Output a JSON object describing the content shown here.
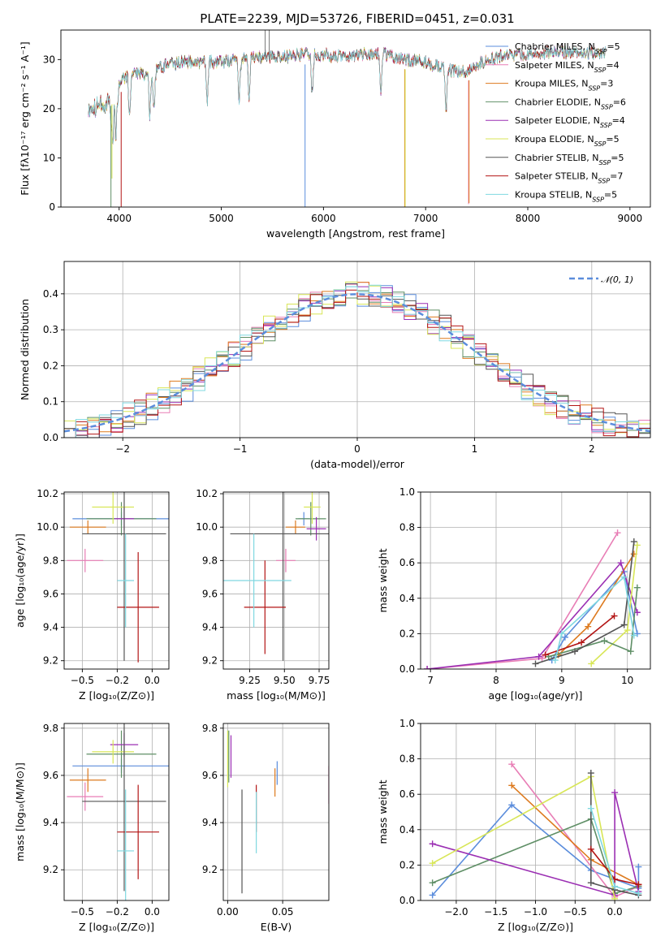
{
  "figure": {
    "title": "PLATE=2239, MJD=53726, FIBERID=0451, z=0.031"
  },
  "colors": {
    "Chabrier MILES": "#5b8ddc",
    "Salpeter MILES": "#e87db5",
    "Kroupa MILES": "#dd7a1e",
    "Chabrier ELODIE": "#5f8f66",
    "Salpeter ELODIE": "#9b2fb3",
    "Kroupa ELODIE": "#d8e657",
    "Chabrier STELIB": "#555555",
    "Salpeter STELIB": "#b31515",
    "Kroupa STELIB": "#7fd8e0"
  },
  "chart_data": [
    {
      "id": "spectrum",
      "type": "line",
      "xlabel": "wavelength [Angstrom, rest frame]",
      "ylabel": "Flux [fλ10⁻¹⁷ erg cm⁻² s⁻¹ A⁻¹]",
      "xlim": [
        3430,
        9200
      ],
      "ylim": [
        0,
        36
      ],
      "xticks": [
        4000,
        5000,
        6000,
        7000,
        8000,
        9000
      ],
      "yticks": [
        0,
        10,
        20,
        30
      ],
      "legend_position": "top-right",
      "legend": [
        {
          "name": "Chabrier MILES",
          "label": "Chabrier MILES, N",
          "n": "=5"
        },
        {
          "name": "Salpeter MILES",
          "label": "Salpeter MILES, N",
          "n": "=4"
        },
        {
          "name": "Kroupa MILES",
          "label": "Kroupa MILES, N",
          "n": "=3"
        },
        {
          "name": "Chabrier ELODIE",
          "label": "Chabrier ELODIE, N",
          "n": "=6"
        },
        {
          "name": "Salpeter ELODIE",
          "label": "Salpeter ELODIE, N",
          "n": "=4"
        },
        {
          "name": "Kroupa ELODIE",
          "label": "Kroupa ELODIE, N",
          "n": "=5"
        },
        {
          "name": "Chabrier STELIB",
          "label": "Chabrier STELIB, N",
          "n": "=5"
        },
        {
          "name": "Salpeter STELIB",
          "label": "Salpeter STELIB, N",
          "n": "=7"
        },
        {
          "name": "Kroupa STELIB",
          "label": "Kroupa STELIB, N",
          "n": "=5"
        }
      ],
      "legend_subscript": "SSP",
      "continuum": [
        [
          3700,
          21
        ],
        [
          3800,
          22
        ],
        [
          3900,
          22
        ],
        [
          4000,
          25
        ],
        [
          4100,
          27
        ],
        [
          4200,
          27
        ],
        [
          4300,
          27
        ],
        [
          4400,
          28.5
        ],
        [
          4600,
          29.5
        ],
        [
          4800,
          29.5
        ],
        [
          5000,
          29.5
        ],
        [
          5200,
          30
        ],
        [
          5400,
          30.5
        ],
        [
          5600,
          30.5
        ],
        [
          5800,
          31
        ],
        [
          6000,
          31
        ],
        [
          6200,
          30.5
        ],
        [
          6400,
          31
        ],
        [
          6600,
          31
        ],
        [
          6800,
          30
        ],
        [
          7000,
          29.5
        ],
        [
          7200,
          28
        ],
        [
          7400,
          27.5
        ],
        [
          7600,
          30
        ],
        [
          7800,
          31
        ],
        [
          8000,
          31
        ],
        [
          8200,
          31.5
        ],
        [
          8400,
          31.5
        ],
        [
          8600,
          31.5
        ],
        [
          8760,
          31.5
        ]
      ],
      "dropouts": [
        {
          "series": "Kroupa ELODIE",
          "x": 3930,
          "to": 5.8
        },
        {
          "series": "Chabrier ELODIE",
          "x": 3920,
          "to": 0
        },
        {
          "series": "Salpeter STELIB",
          "x": 4020,
          "to": 0
        },
        {
          "series": "Chabrier MILES",
          "x": 5820,
          "to": 0
        },
        {
          "series": "Kroupa MILES",
          "x": 6795,
          "to": 0
        },
        {
          "series": "Kroupa ELODIE",
          "x": 6800,
          "to": 0
        },
        {
          "series": "Salpeter MILES",
          "x": 7420,
          "to": 0.6
        },
        {
          "series": "Kroupa MILES",
          "x": 7425,
          "to": 0.8
        }
      ]
    },
    {
      "id": "residuals",
      "type": "line",
      "xlabel": "(data-model)/error",
      "ylabel": "Normed distribution",
      "xlim": [
        -2.5,
        2.5
      ],
      "ylim": [
        0,
        0.49
      ],
      "xticks": [
        -2,
        -1,
        0,
        1,
        2
      ],
      "yticks": [
        0.0,
        0.1,
        0.2,
        0.3,
        0.4
      ],
      "legend_position": "top-right",
      "legend": [
        {
          "name": "N(0,1)",
          "label": "𝒩(0, 1)"
        }
      ],
      "bin_width": 0.1,
      "gaussian": {
        "mean": 0,
        "sigma": 1
      }
    },
    {
      "id": "Z-age",
      "type": "scatter",
      "xlabel": "Z [log₁₀(Z/Z⊙)]",
      "ylabel": "age  [log₁₀(age/yr)]",
      "xlim": [
        -0.63,
        0.12
      ],
      "ylim": [
        9.15,
        10.21
      ],
      "xticks": [
        -0.5,
        -0.25,
        0.0
      ],
      "xticklabels": [
        "−0.5",
        "−0.2",
        "0.0"
      ],
      "yticks": [
        9.2,
        9.4,
        9.6,
        9.8,
        10.0,
        10.2
      ],
      "points": [
        {
          "series": "Chabrier MILES",
          "x": -0.22,
          "xerr": 0.35,
          "y": 10.05,
          "yerr": 0.04
        },
        {
          "series": "Salpeter MILES",
          "x": -0.48,
          "xerr": 0.13,
          "y": 9.8,
          "yerr": 0.07
        },
        {
          "series": "Kroupa MILES",
          "x": -0.46,
          "xerr": 0.13,
          "y": 10.0,
          "yerr": 0.04
        },
        {
          "series": "Chabrier ELODIE",
          "x": -0.22,
          "xerr": 0.25,
          "y": 10.05,
          "yerr": 0.1
        },
        {
          "series": "Salpeter ELODIE",
          "x": -0.2,
          "xerr": 0.07,
          "y": 10.05,
          "yerr": 0.07
        },
        {
          "series": "Kroupa ELODIE",
          "x": -0.28,
          "xerr": 0.15,
          "y": 10.12,
          "yerr": 0.1
        },
        {
          "series": "Chabrier STELIB",
          "x": -0.2,
          "xerr": 0.3,
          "y": 9.96,
          "yerr": 0.76
        },
        {
          "series": "Salpeter STELIB",
          "x": -0.1,
          "xerr": 0.15,
          "y": 9.52,
          "yerr": 0.33
        },
        {
          "series": "Kroupa STELIB",
          "x": -0.19,
          "xerr": 0.06,
          "y": 9.68,
          "yerr": 0.28
        }
      ]
    },
    {
      "id": "mass-age",
      "type": "scatter",
      "xlabel": "mass [log₁₀(M/M⊙)]",
      "ylabel": "",
      "xlim": [
        9.06,
        9.82
      ],
      "ylim": [
        9.15,
        10.21
      ],
      "xticks": [
        9.25,
        9.5,
        9.75
      ],
      "xticklabels": [
        "9.25",
        "9.50",
        "9.75"
      ],
      "yticks": [
        9.2,
        9.4,
        9.6,
        9.8,
        10.0,
        10.2
      ],
      "points": [
        {
          "series": "Chabrier MILES",
          "x": 9.64,
          "xerr": 0.04,
          "y": 10.05,
          "yerr": 0.04
        },
        {
          "series": "Salpeter MILES",
          "x": 9.51,
          "xerr": 0.07,
          "y": 9.8,
          "yerr": 0.07
        },
        {
          "series": "Kroupa MILES",
          "x": 9.58,
          "xerr": 0.07,
          "y": 10.0,
          "yerr": 0.04
        },
        {
          "series": "Chabrier ELODIE",
          "x": 9.69,
          "xerr": 0.11,
          "y": 10.05,
          "yerr": 0.1
        },
        {
          "series": "Salpeter ELODIE",
          "x": 9.73,
          "xerr": 0.07,
          "y": 9.99,
          "yerr": 0.07
        },
        {
          "series": "Kroupa ELODIE",
          "x": 9.7,
          "xerr": 0.06,
          "y": 10.12,
          "yerr": 0.1
        },
        {
          "series": "Chabrier STELIB",
          "x": 9.49,
          "xerr": 0.38,
          "y": 9.96,
          "yerr": 0.76
        },
        {
          "series": "Salpeter STELIB",
          "x": 9.36,
          "xerr": 0.15,
          "y": 9.52,
          "yerr": 0.28
        },
        {
          "series": "Kroupa STELIB",
          "x": 9.28,
          "xerr": 0.27,
          "y": 9.68,
          "yerr": 0.28
        }
      ]
    },
    {
      "id": "age-weight",
      "type": "line",
      "xlabel": "age  [log₁₀(age/yr)]",
      "ylabel": "mass weight",
      "xlim": [
        6.85,
        10.35
      ],
      "ylim": [
        0,
        1
      ],
      "xticks": [
        7,
        8,
        9,
        10
      ],
      "yticks": [
        0.0,
        0.2,
        0.4,
        0.6,
        0.8,
        1.0
      ],
      "series": [
        {
          "name": "Salpeter MILES",
          "points": [
            [
              6.95,
              0.0
            ],
            [
              8.7,
              0.06
            ],
            [
              9.85,
              0.77
            ]
          ]
        },
        {
          "name": "Chabrier MILES",
          "points": [
            [
              8.85,
              0.05
            ],
            [
              9.05,
              0.18
            ],
            [
              9.95,
              0.55
            ],
            [
              10.15,
              0.2
            ]
          ]
        },
        {
          "name": "Kroupa MILES",
          "points": [
            [
              8.95,
              0.08
            ],
            [
              9.4,
              0.24
            ],
            [
              10.1,
              0.65
            ]
          ]
        },
        {
          "name": "Salpeter ELODIE",
          "points": [
            [
              6.95,
              0.0
            ],
            [
              8.65,
              0.07
            ],
            [
              9.9,
              0.6
            ],
            [
              10.15,
              0.32
            ]
          ]
        },
        {
          "name": "Kroupa ELODIE",
          "points": [
            [
              9.45,
              0.03
            ],
            [
              10.0,
              0.22
            ],
            [
              10.15,
              0.7
            ]
          ]
        },
        {
          "name": "Chabrier ELODIE",
          "points": [
            [
              8.8,
              0.07
            ],
            [
              9.65,
              0.16
            ],
            [
              10.05,
              0.1
            ],
            [
              10.15,
              0.46
            ]
          ]
        },
        {
          "name": "Chabrier STELIB",
          "points": [
            [
              8.6,
              0.03
            ],
            [
              9.2,
              0.1
            ],
            [
              9.95,
              0.25
            ],
            [
              10.1,
              0.72
            ]
          ]
        },
        {
          "name": "Salpeter STELIB",
          "points": [
            [
              8.75,
              0.08
            ],
            [
              9.3,
              0.15
            ],
            [
              9.8,
              0.3
            ]
          ]
        },
        {
          "name": "Kroupa STELIB",
          "points": [
            [
              8.9,
              0.05
            ],
            [
              9.0,
              0.2
            ],
            [
              9.95,
              0.52
            ],
            [
              10.1,
              0.19
            ]
          ]
        }
      ]
    },
    {
      "id": "Z-mass",
      "type": "scatter",
      "xlabel": "Z [log₁₀(Z/Z⊙)]",
      "ylabel": "mass [log₁₀(M/M⊙)]",
      "xlim": [
        -0.63,
        0.12
      ],
      "ylim": [
        9.07,
        9.82
      ],
      "xticks": [
        -0.5,
        -0.25,
        0.0
      ],
      "xticklabels": [
        "−0.5",
        "−0.2",
        "0.0"
      ],
      "yticks": [
        9.2,
        9.4,
        9.6,
        9.8
      ],
      "points": [
        {
          "series": "Chabrier MILES",
          "x": -0.22,
          "xerr": 0.35,
          "y": 9.64,
          "yerr": 0.03
        },
        {
          "series": "Salpeter MILES",
          "x": -0.48,
          "xerr": 0.13,
          "y": 9.51,
          "yerr": 0.06
        },
        {
          "series": "Kroupa MILES",
          "x": -0.46,
          "xerr": 0.13,
          "y": 9.58,
          "yerr": 0.05
        },
        {
          "series": "Chabrier ELODIE",
          "x": -0.22,
          "xerr": 0.25,
          "y": 9.69,
          "yerr": 0.1
        },
        {
          "series": "Salpeter ELODIE",
          "x": -0.2,
          "xerr": 0.1,
          "y": 9.73,
          "yerr": 0.05
        },
        {
          "series": "Kroupa ELODIE",
          "x": -0.28,
          "xerr": 0.15,
          "y": 9.7,
          "yerr": 0.05
        },
        {
          "series": "Chabrier STELIB",
          "x": -0.2,
          "xerr": 0.3,
          "y": 9.49,
          "yerr": 0.38
        },
        {
          "series": "Salpeter STELIB",
          "x": -0.1,
          "xerr": 0.15,
          "y": 9.36,
          "yerr": 0.2
        },
        {
          "series": "Kroupa STELIB",
          "x": -0.19,
          "xerr": 0.06,
          "y": 9.28,
          "yerr": 0.26
        }
      ]
    },
    {
      "id": "ebv-mass",
      "type": "scatter",
      "xlabel": "E(B-V)",
      "ylabel": "",
      "xlim": [
        -0.004,
        0.092
      ],
      "ylim": [
        9.07,
        9.82
      ],
      "xticks": [
        0.0,
        0.05
      ],
      "xticklabels": [
        "0.00",
        "0.05"
      ],
      "yticks": [
        9.2,
        9.4,
        9.6,
        9.8
      ],
      "points": [
        {
          "series": "Chabrier MILES",
          "x": 0.045,
          "y": 9.61,
          "yerr": 0.05
        },
        {
          "series": "Salpeter MILES",
          "x": 0.092,
          "y": 9.56,
          "yerr": 0.08
        },
        {
          "series": "Kroupa MILES",
          "x": 0.043,
          "y": 9.57,
          "yerr": 0.06
        },
        {
          "series": "Chabrier ELODIE",
          "x": 0.001,
          "y": 9.68,
          "yerr": 0.11
        },
        {
          "series": "Salpeter ELODIE",
          "x": 0.003,
          "y": 9.68,
          "yerr": 0.09
        },
        {
          "series": "Kroupa ELODIE",
          "x": 0.0,
          "y": 9.67,
          "yerr": 0.12
        },
        {
          "series": "Chabrier STELIB",
          "x": 0.013,
          "y": 9.32,
          "yerr": 0.22
        },
        {
          "series": "Salpeter STELIB",
          "x": 0.026,
          "y": 9.46,
          "yerr": 0.1
        },
        {
          "series": "Kroupa STELIB",
          "x": 0.026,
          "y": 9.4,
          "yerr": 0.13
        }
      ]
    },
    {
      "id": "Z-weight",
      "type": "line",
      "xlabel": "Z [log₁₀(Z/Z⊙)]",
      "ylabel": "mass weight",
      "xlim": [
        -2.45,
        0.45
      ],
      "ylim": [
        0,
        1
      ],
      "xticks": [
        -2.0,
        -1.5,
        -1.0,
        -0.5,
        0.0
      ],
      "xticklabels": [
        "−2.0",
        "−1.5",
        "−1.0",
        "−0.5",
        "0.0"
      ],
      "yticks": [
        0.0,
        0.2,
        0.4,
        0.6,
        0.8,
        1.0
      ],
      "series": [
        {
          "name": "Chabrier MILES",
          "points": [
            [
              -2.3,
              0.03
            ],
            [
              -1.3,
              0.54
            ],
            [
              -0.3,
              0.17
            ],
            [
              0.3,
              0.07
            ],
            [
              0.3,
              0.19
            ]
          ]
        },
        {
          "name": "Salpeter MILES",
          "points": [
            [
              -1.3,
              0.77
            ],
            [
              0.0,
              0.02
            ],
            [
              0.3,
              0.08
            ]
          ]
        },
        {
          "name": "Kroupa MILES",
          "points": [
            [
              -1.3,
              0.65
            ],
            [
              -0.3,
              0.23
            ],
            [
              0.3,
              0.09
            ]
          ]
        },
        {
          "name": "Chabrier ELODIE",
          "points": [
            [
              -2.3,
              0.1
            ],
            [
              -0.3,
              0.46
            ],
            [
              0.0,
              0.04
            ],
            [
              0.3,
              0.08
            ]
          ]
        },
        {
          "name": "Salpeter ELODIE",
          "points": [
            [
              -2.3,
              0.32
            ],
            [
              0.0,
              0.03
            ],
            [
              0.0,
              0.61
            ],
            [
              0.3,
              0.05
            ]
          ]
        },
        {
          "name": "Kroupa ELODIE",
          "points": [
            [
              -2.3,
              0.21
            ],
            [
              -0.3,
              0.7
            ],
            [
              0.0,
              0.01
            ]
          ]
        },
        {
          "name": "Chabrier STELIB",
          "points": [
            [
              -0.3,
              0.72
            ],
            [
              -0.3,
              0.1
            ],
            [
              0.0,
              0.06
            ],
            [
              0.3,
              0.03
            ]
          ]
        },
        {
          "name": "Salpeter STELIB",
          "points": [
            [
              -0.3,
              0.29
            ],
            [
              0.0,
              0.12
            ],
            [
              0.3,
              0.09
            ]
          ]
        },
        {
          "name": "Kroupa STELIB",
          "points": [
            [
              -0.3,
              0.52
            ],
            [
              0.0,
              0.08
            ],
            [
              0.3,
              0.04
            ]
          ]
        }
      ]
    }
  ]
}
